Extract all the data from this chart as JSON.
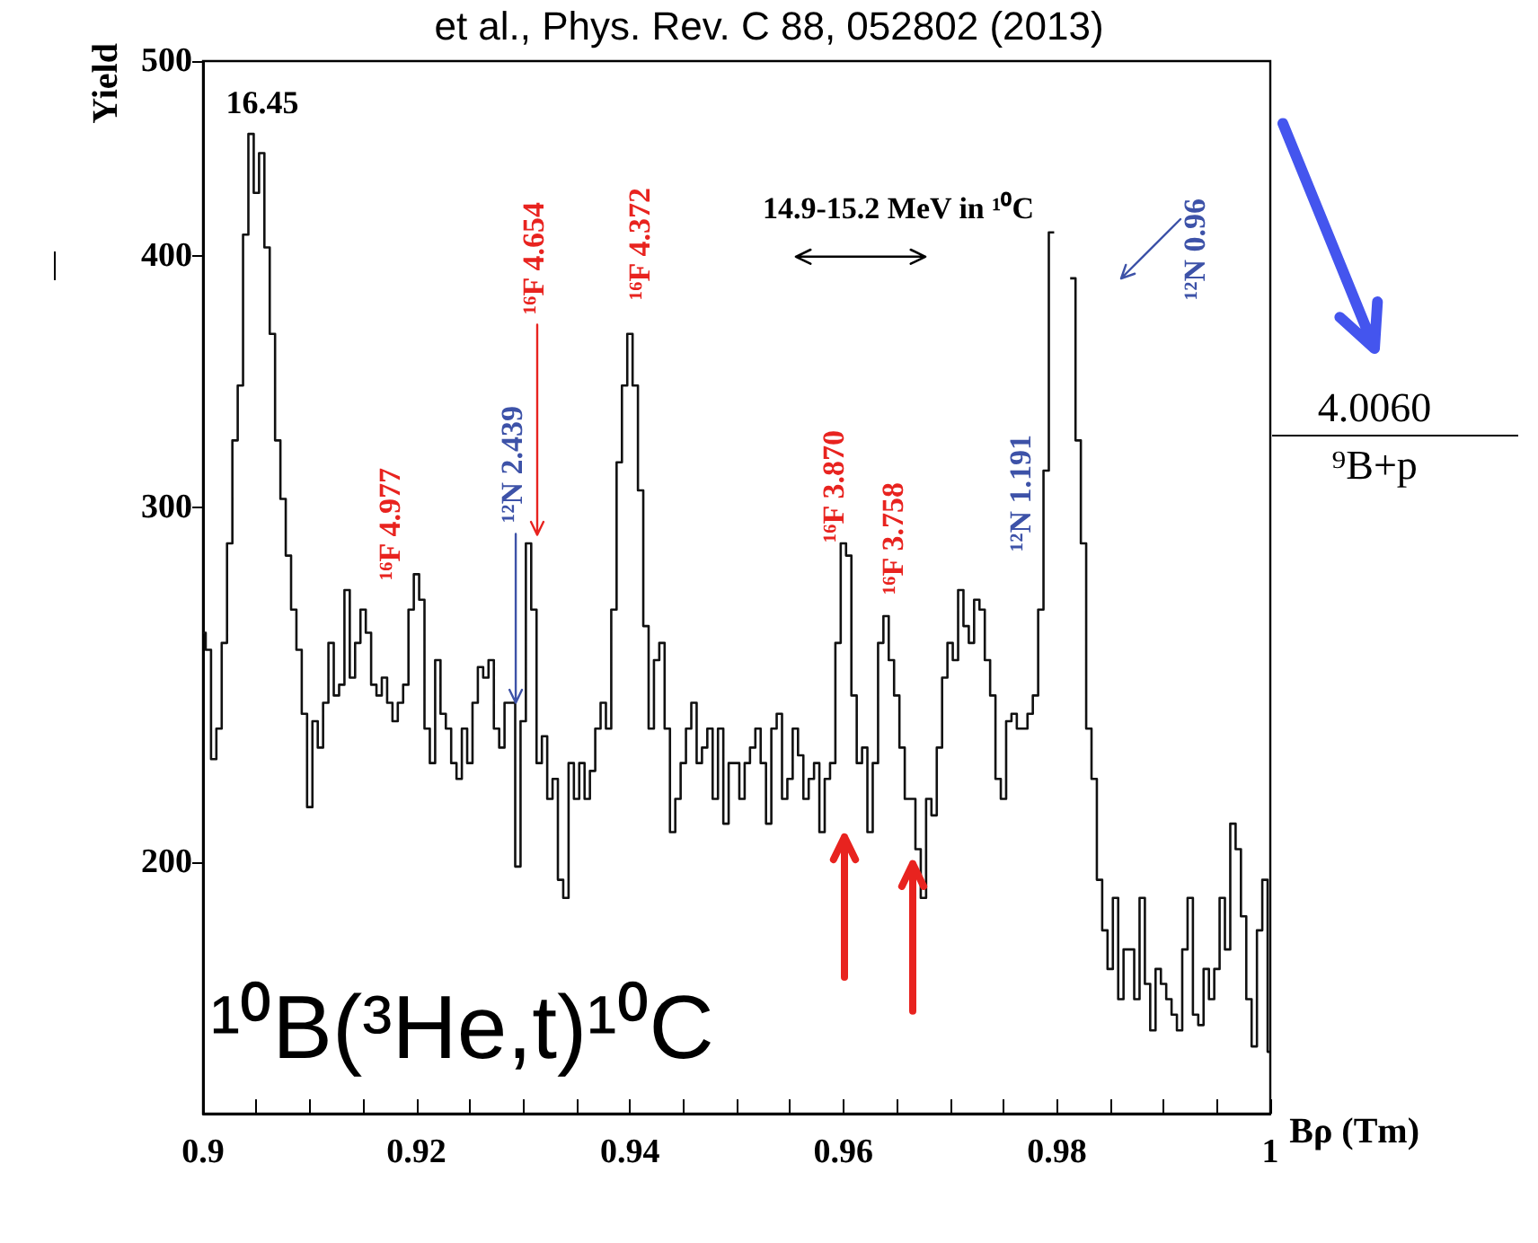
{
  "chart_data": {
    "type": "step",
    "xlabel": "Bρ (Tm)",
    "ylabel": "Yield",
    "color": "#111111",
    "log": "y",
    "xlim": [
      0.9,
      1
    ],
    "ylim": [
      150,
      500
    ],
    "yticks": [
      200,
      300,
      400,
      500
    ],
    "xticks": [
      0.9,
      {
        "value": 0.905,
        "label": null
      },
      {
        "value": 0.91,
        "label": null
      },
      {
        "value": 0.915,
        "label": null
      },
      0.92,
      {
        "value": 0.925,
        "label": null
      },
      {
        "value": 0.93,
        "label": null
      },
      {
        "value": 0.935,
        "label": null
      },
      0.94,
      {
        "value": 0.945,
        "label": null
      },
      {
        "value": 0.95,
        "label": null
      },
      {
        "value": 0.955,
        "label": null
      },
      0.96,
      {
        "value": 0.965,
        "label": null
      },
      {
        "value": 0.97,
        "label": null
      },
      {
        "value": 0.975,
        "label": null
      },
      0.98,
      {
        "value": 0.985,
        "label": null
      },
      {
        "value": 0.99,
        "label": null
      },
      {
        "value": 0.995,
        "label": null
      },
      1
    ],
    "x": [
      0.9,
      0.9005,
      0.901,
      0.9015,
      0.902,
      0.9025,
      0.903,
      0.9035,
      0.904,
      0.9045,
      0.905,
      0.9055,
      0.906,
      0.9065,
      0.907,
      0.9075,
      0.908,
      0.9085,
      0.909,
      0.9095,
      0.91,
      0.9105,
      0.911,
      0.9115,
      0.912,
      0.9125,
      0.913,
      0.9135,
      0.914,
      0.9145,
      0.915,
      0.9155,
      0.916,
      0.9165,
      0.917,
      0.9175,
      0.918,
      0.9185,
      0.919,
      0.9195,
      0.92,
      0.9205,
      0.921,
      0.9215,
      0.922,
      0.9225,
      0.923,
      0.9235,
      0.924,
      0.9245,
      0.925,
      0.9255,
      0.926,
      0.9265,
      0.927,
      0.9275,
      0.928,
      0.9285,
      0.929,
      0.9295,
      0.93,
      0.9305,
      0.931,
      0.9315,
      0.932,
      0.9325,
      0.933,
      0.9335,
      0.934,
      0.9345,
      0.935,
      0.9355,
      0.936,
      0.9365,
      0.937,
      0.9375,
      0.938,
      0.9385,
      0.939,
      0.9395,
      0.94,
      0.9405,
      0.941,
      0.9415,
      0.942,
      0.9425,
      0.943,
      0.9435,
      0.944,
      0.9445,
      0.945,
      0.9455,
      0.946,
      0.9465,
      0.947,
      0.9475,
      0.948,
      0.9485,
      0.949,
      0.9495,
      0.95,
      0.9505,
      0.951,
      0.9515,
      0.952,
      0.9525,
      0.953,
      0.9535,
      0.954,
      0.9545,
      0.955,
      0.9555,
      0.956,
      0.9565,
      0.957,
      0.9575,
      0.958,
      0.9585,
      0.959,
      0.9595,
      0.96,
      0.9605,
      0.961,
      0.9615,
      0.962,
      0.9625,
      0.963,
      0.9635,
      0.964,
      0.9645,
      0.965,
      0.9655,
      0.966,
      0.9665,
      0.967,
      0.9675,
      0.968,
      0.9685,
      0.969,
      0.9695,
      0.97,
      0.9705,
      0.971,
      0.9715,
      0.972,
      0.9725,
      0.973,
      0.9735,
      0.974,
      0.9745,
      0.975,
      0.9755,
      0.976,
      0.9765,
      0.977,
      0.9775,
      0.978,
      0.9785,
      0.979,
      0.9795,
      0.98,
      0.9805,
      0.981,
      0.9815,
      0.982,
      0.9825,
      0.983,
      0.9835,
      0.984,
      0.9845,
      0.985,
      0.9855,
      0.986,
      0.9865,
      0.987,
      0.9875,
      0.988,
      0.9885,
      0.989,
      0.9895,
      0.99,
      0.9905,
      0.991,
      0.9915,
      0.992,
      0.9925,
      0.993,
      0.9935,
      0.994,
      0.9945,
      0.995,
      0.9955,
      0.996,
      0.9965,
      0.997,
      0.9975,
      0.998,
      0.9985,
      0.999,
      0.9995,
      1
    ],
    "values": [
      260,
      255,
      225,
      233,
      257,
      288,
      324,
      345,
      410,
      460,
      430,
      450,
      404,
      366,
      324,
      303,
      284,
      267,
      255,
      237,
      213,
      235,
      228,
      240,
      257,
      242,
      245,
      273,
      247,
      257,
      267,
      260,
      245,
      242,
      247,
      240,
      235,
      240,
      245,
      267,
      278,
      270,
      233,
      224,
      252,
      237,
      233,
      224,
      220,
      233,
      224,
      240,
      250,
      247,
      252,
      233,
      228,
      240,
      240,
      199,
      235,
      288,
      267,
      224,
      231,
      215,
      220,
      196,
      192,
      224,
      215,
      224,
      215,
      222,
      233,
      240,
      233,
      267,
      316,
      345,
      366,
      345,
      306,
      262,
      233,
      252,
      257,
      233,
      207,
      215,
      224,
      233,
      240,
      224,
      228,
      233,
      215,
      233,
      209,
      224,
      224,
      215,
      224,
      228,
      233,
      224,
      209,
      233,
      237,
      215,
      220,
      233,
      226,
      215,
      220,
      224,
      207,
      220,
      224,
      257,
      288,
      284,
      242,
      224,
      228,
      207,
      224,
      257,
      265,
      252,
      242,
      228,
      215,
      215,
      203,
      192,
      215,
      211,
      228,
      247,
      257,
      252,
      273,
      262,
      257,
      270,
      267,
      252,
      242,
      220,
      215,
      235,
      237,
      233,
      233,
      237,
      242,
      267,
      313,
      411,
      null,
      null,
      null,
      390,
      324,
      288,
      233,
      220,
      196,
      185,
      177,
      192,
      171,
      181,
      181,
      171,
      192,
      174,
      165,
      177,
      174,
      171,
      168,
      165,
      181,
      192,
      168,
      166,
      177,
      171,
      177,
      192,
      181,
      209,
      203,
      188,
      171,
      162,
      185,
      196,
      161
    ],
    "annotations": [
      "et al., Phys. Rev. C 88, 052802 (2013)",
      "14.9-15.2 MeV in ¹⁰C",
      "¹⁰B(³He,t)¹⁰C",
      "4.0060",
      "⁹B+p",
      "16.45",
      "¹⁶F 4.977",
      {
        "text": "¹²N 2.439",
        "x": 0.9293,
        "y": 240
      },
      "¹⁶F 4.654",
      "¹⁶F 4.372",
      "¹⁶F 3.870",
      "¹⁶F 3.758",
      "¹²N 1.191",
      "¹²N 0.96"
    ]
  }
}
